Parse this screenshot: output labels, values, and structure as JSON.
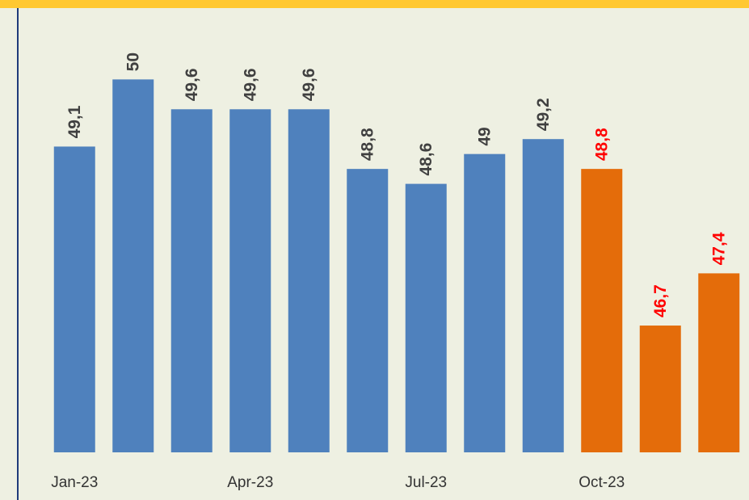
{
  "chart_data": {
    "type": "bar",
    "categories": [
      "Jan-23",
      null,
      null,
      "Apr-23",
      null,
      null,
      "Jul-23",
      null,
      null,
      "Oct-23",
      null,
      null
    ],
    "values": [
      49.1,
      50,
      49.6,
      49.6,
      49.6,
      48.8,
      48.6,
      49,
      49.2,
      48.8,
      46.7,
      47.4
    ],
    "value_labels": [
      "49,1",
      "50",
      "49,6",
      "49,6",
      "49,6",
      "48,8",
      "48,6",
      "49",
      "49,2",
      "48,8",
      "46,7",
      "47,4"
    ],
    "colors": [
      "#4f81bd",
      "#4f81bd",
      "#4f81bd",
      "#4f81bd",
      "#4f81bd",
      "#4f81bd",
      "#4f81bd",
      "#4f81bd",
      "#4f81bd",
      "#e46c0a",
      "#e46c0a",
      "#e46c0a"
    ],
    "label_colors": [
      "#404040",
      "#404040",
      "#404040",
      "#404040",
      "#404040",
      "#404040",
      "#404040",
      "#404040",
      "#404040",
      "#ff0000",
      "#ff0000",
      "#ff0000"
    ],
    "ylim": [
      45,
      51
    ]
  }
}
